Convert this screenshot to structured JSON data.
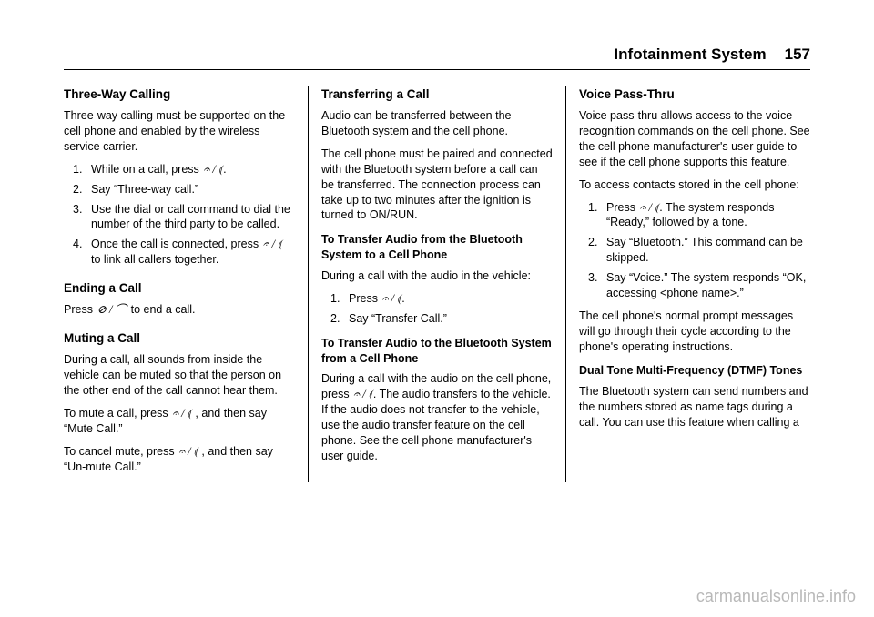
{
  "header": {
    "title": "Infotainment System",
    "page": "157"
  },
  "col1": {
    "h1": "Three-Way Calling",
    "p1": "Three-way calling must be supported on the cell phone and enabled by the wireless service carrier.",
    "li1a": "While on a call, press ",
    "li1b": ".",
    "li2": "Say “Three-way call.”",
    "li3": "Use the dial or call command to dial the number of the third party to be called.",
    "li4a": "Once the call is connected, press ",
    "li4b": " to link all callers together.",
    "h2": "Ending a Call",
    "p2a": "Press ",
    "p2b": " to end a call.",
    "h3": "Muting a Call",
    "p3": "During a call, all sounds from inside the vehicle can be muted so that the person on the other end of the call cannot hear them.",
    "p4a": "To mute a call, press ",
    "p4b": " , and then say “Mute Call.”",
    "p5a": "To cancel mute, press ",
    "p5b": " , and then say “Un-mute Call.”"
  },
  "col2": {
    "h1": "Transferring a Call",
    "p1": "Audio can be transferred between the Bluetooth system and the cell phone.",
    "p2": "The cell phone must be paired and connected with the Bluetooth system before a call can be transferred. The connection process can take up to two minutes after the ignition is turned to ON/RUN.",
    "sh1": "To Transfer Audio from the Bluetooth System to a Cell Phone",
    "p3": "During a call with the audio in the vehicle:",
    "li1a": "Press ",
    "li1b": ".",
    "li2": "Say “Transfer Call.”",
    "sh2": "To Transfer Audio to the Bluetooth System from a Cell Phone",
    "p4a": "During a call with the audio on the cell phone, press ",
    "p4b": ". The audio transfers to the vehicle. If the audio does not transfer to the vehicle, use the audio transfer feature on the cell phone. See the cell phone manufacturer's user guide."
  },
  "col3": {
    "h1": "Voice Pass-Thru",
    "p1": "Voice pass-thru allows access to the voice recognition commands on the cell phone. See the cell phone manufacturer's user guide to see if the cell phone supports this feature.",
    "p2": "To access contacts stored in the cell phone:",
    "li1a": "Press ",
    "li1b": ". The system responds “Ready,” followed by a tone.",
    "li2": "Say “Bluetooth.” This command can be skipped.",
    "li3": "Say “Voice.” The system responds “OK, accessing <phone name>.”",
    "p3": "The cell phone's normal prompt messages will go through their cycle according to the phone's operating instructions.",
    "sh1": "Dual Tone Multi-Frequency (DTMF) Tones",
    "p4": "The Bluetooth system can send numbers and the numbers stored as name tags during a call. You can use this feature when calling a"
  },
  "icons": {
    "talk": "📞′ / ♪′",
    "end": "✕ / ⌒"
  },
  "watermark": "carmanualsonline.info"
}
